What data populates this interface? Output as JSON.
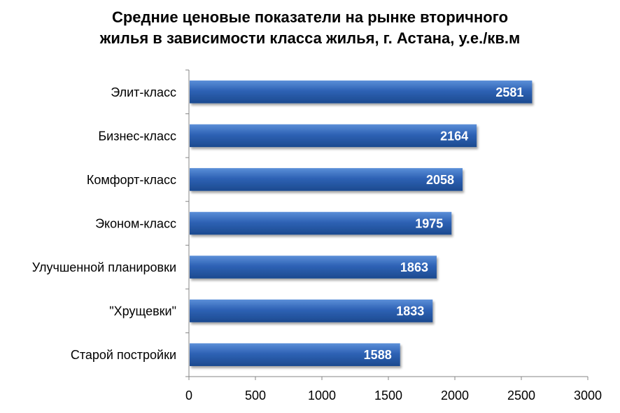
{
  "chart_data": {
    "type": "bar",
    "orientation": "horizontal",
    "title_lines": [
      "Средние ценовые показатели на рынке вторичного",
      "жилья в зависимости класса жилья, г. Астана, у.е./кв.м"
    ],
    "categories": [
      "Элит-класс",
      "Бизнес-класс",
      "Комфорт-класс",
      "Эконом-класс",
      "Улучшенной планировки",
      "\"Хрущевки\"",
      "Старой постройки"
    ],
    "values": [
      2581,
      2164,
      2058,
      1975,
      1863,
      1833,
      1588
    ],
    "xlim": [
      0,
      3000
    ],
    "xticks": [
      0,
      500,
      1000,
      1500,
      2000,
      2500,
      3000
    ],
    "grid": false,
    "legend": "none",
    "bar_color": "#2e62b5",
    "bar_color_light": "#5b8fd8",
    "bar_color_dark": "#1c4a8f",
    "axis_color": "#868686",
    "xlabel": "",
    "ylabel": ""
  }
}
